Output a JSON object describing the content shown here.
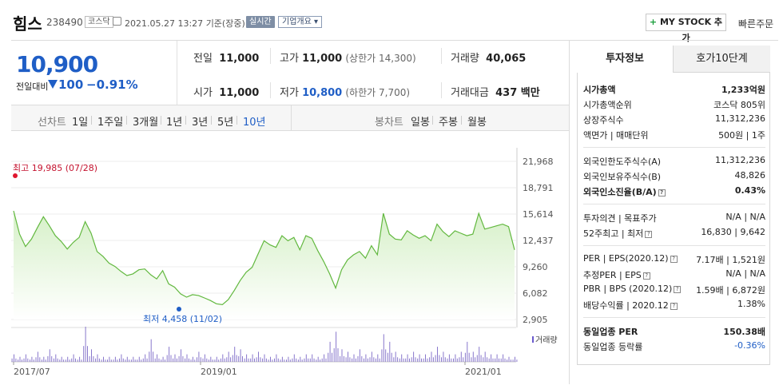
{
  "header": {
    "name": "힘스",
    "code": "238490",
    "market": "코스닥",
    "datetime": "2021.05.27 13:27",
    "basis": "기준(장중)",
    "realtime": "실시간",
    "company_overview": "기업개요 ▾",
    "mystock": "MY STOCK 추가",
    "quick_order": "빠른주문"
  },
  "price": {
    "current": "10,900",
    "prev_label": "전일대비",
    "change": "100",
    "change_pct": "−0.91%"
  },
  "stats": {
    "prev_close_label": "전일",
    "prev_close": "11,000",
    "high_label": "고가",
    "high": "11,000",
    "upper_limit": "(상한가 14,300)",
    "volume_label": "거래량",
    "volume": "40,065",
    "open_label": "시가",
    "open": "11,000",
    "low_label": "저가",
    "low": "10,800",
    "lower_limit": "(하한가 7,700)",
    "amount_label": "거래대금",
    "amount": "437 백만"
  },
  "period": {
    "line_label": "선차트",
    "line_items": [
      "1일",
      "1주일",
      "3개월",
      "1년",
      "3년",
      "5년",
      "10년"
    ],
    "active": "10년",
    "candle_label": "봉차트",
    "candle_items": [
      "일봉",
      "주봉",
      "월봉"
    ]
  },
  "chart": {
    "high_label": "최고 19,985 (07/28)",
    "low_label": "최저 4,458 (11/02)",
    "y_ticks": [
      "21,968",
      "18,791",
      "15,614",
      "12,437",
      "9,260",
      "6,082",
      "2,905"
    ],
    "x_ticks": [
      "2017/07",
      "2019/01",
      "2021/01"
    ],
    "volume_label": "거래량",
    "line_color": "#62b83f",
    "fill_color": "#d6f0c8"
  },
  "chart_data": {
    "type": "area",
    "title": "",
    "ylim": [
      2905,
      21968
    ],
    "y_ticks": [
      21968,
      18791,
      15614,
      12437,
      9260,
      6082,
      2905
    ],
    "x_ticks": [
      "2017/07",
      "2019/01",
      "2021/01"
    ],
    "high": {
      "value": 19985,
      "date": "07/28"
    },
    "low": {
      "value": 4458,
      "date": "11/02"
    },
    "series": [
      {
        "values": [
          16000,
          13200,
          11700,
          12600,
          14000,
          15300,
          14200,
          13000,
          12300,
          11400,
          12200,
          12800,
          14700,
          13300,
          11100,
          10500,
          9700,
          9300,
          8700,
          8200,
          8400,
          8900,
          9000,
          8300,
          7800,
          8800,
          7200,
          6800,
          6000,
          5600,
          5900,
          5800,
          5500,
          5200,
          4800,
          4700,
          5300,
          6400,
          7600,
          8600,
          9200,
          10800,
          12400,
          11900,
          11600,
          13000,
          12400,
          12800,
          11300,
          13000,
          12700,
          11200,
          9900,
          8400,
          6700,
          8900,
          10100,
          10700,
          11100,
          10300,
          11800,
          10700,
          15700,
          13200,
          12600,
          12500,
          13600,
          13100,
          12700,
          13000,
          12400,
          14400,
          13500,
          12900,
          13600,
          13300,
          13000,
          13200,
          15700,
          13800,
          14000,
          14200,
          14400,
          14100,
          11300
        ]
      }
    ],
    "volume": [
      3,
      2,
      3,
      2,
      4,
      2,
      5,
      3,
      2,
      2,
      3,
      2,
      14,
      5,
      3,
      2,
      2,
      2,
      3,
      2,
      2,
      2,
      3,
      9,
      3,
      2,
      6,
      3,
      5,
      3,
      2,
      4,
      3,
      2,
      2,
      3,
      4,
      6,
      5,
      3,
      3,
      4,
      3,
      2,
      3,
      2,
      2,
      3,
      2,
      3,
      3,
      2,
      3,
      8,
      12,
      5,
      4,
      3,
      5,
      3,
      4,
      3,
      11,
      8,
      4,
      3,
      3,
      4,
      3,
      3,
      4,
      6,
      4,
      3,
      3,
      4,
      8,
      4,
      6,
      4,
      3,
      3,
      3,
      2,
      2
    ]
  },
  "invest": {
    "tab_active": "투자정보",
    "tab_other": "호가10단계",
    "rows": [
      {
        "label": "시가총액",
        "value": "1,233억원"
      },
      {
        "label": "시가총액순위",
        "value": "코스닥 805위"
      },
      {
        "label": "상장주식수",
        "value": "11,312,236"
      },
      {
        "label": "액면가 | 매매단위",
        "value": "500원 | 1주"
      },
      {
        "label": "외국인한도주식수(A)",
        "value": "11,312,236"
      },
      {
        "label": "외국인보유주식수(B)",
        "value": "48,826"
      },
      {
        "label": "외국인소진율(B/A)",
        "value": "0.43%"
      },
      {
        "label": "투자의견 | 목표주가",
        "value": "N/A | N/A"
      },
      {
        "label": "52주최고 | 최저",
        "value": "16,830 | 9,642"
      },
      {
        "label": "PER | EPS(2020.12)",
        "value": "7.17배 | 1,521원"
      },
      {
        "label": "추정PER | EPS",
        "value": "N/A | N/A"
      },
      {
        "label": "PBR | BPS (2020.12)",
        "value": "1.59배 | 6,872원"
      },
      {
        "label": "배당수익률 | 2020.12",
        "value": "1.38%"
      },
      {
        "label": "동일업종 PER",
        "value": "150.38배"
      },
      {
        "label": "동일업종 등락률",
        "value": "-0.36%"
      }
    ]
  }
}
